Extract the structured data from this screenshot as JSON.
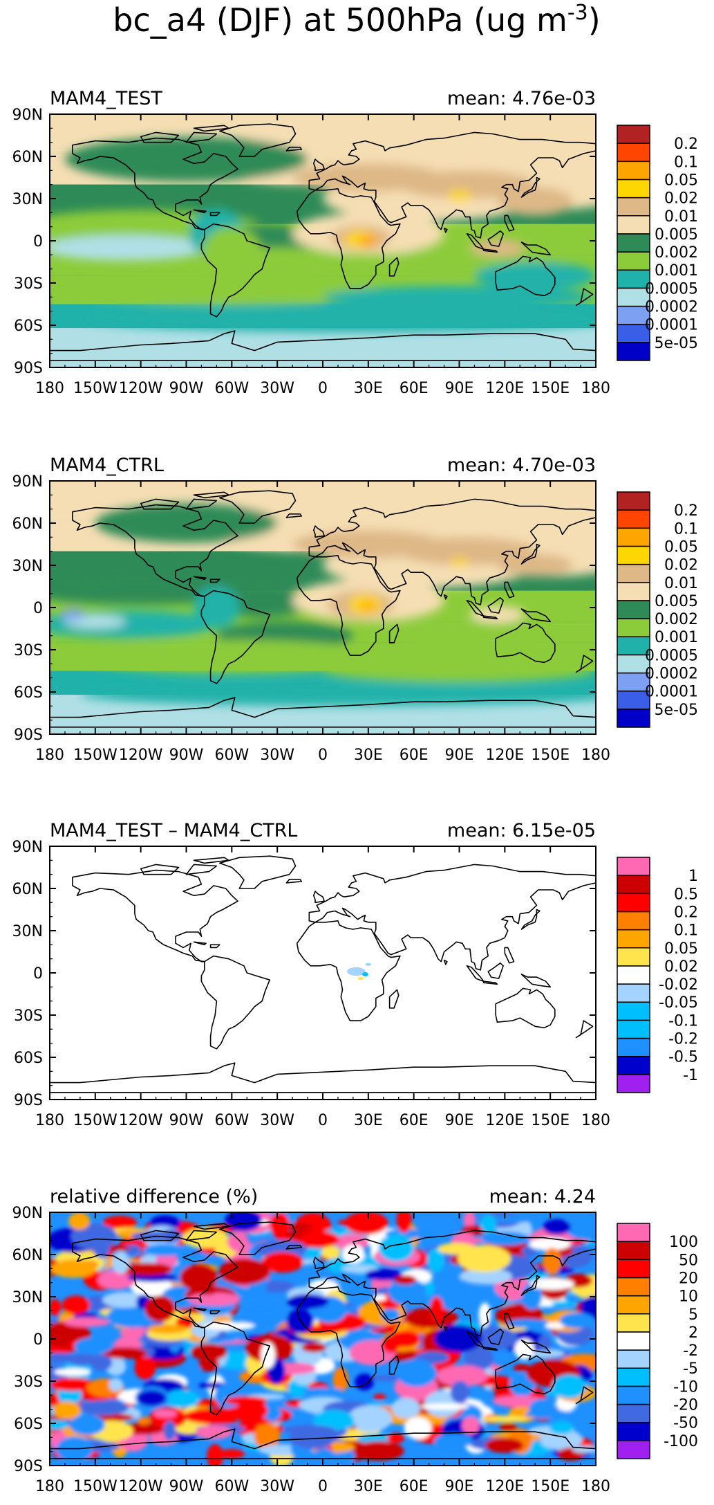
{
  "figure_title": "bc_a4 (DJF) at 500hPa (ug m",
  "figure_title_sup": "-3",
  "figure_title_end": ")",
  "colors": {
    "conc": [
      "#0000c8",
      "#3a5ee8",
      "#7ea0f2",
      "#b0e0e6",
      "#20b2aa",
      "#8ccc3a",
      "#2e8b57",
      "#f5deb3",
      "#deb887",
      "#ffd700",
      "#ffa500",
      "#ff4500",
      "#b22222"
    ],
    "diff": [
      "#a020f0",
      "#0000cd",
      "#1e90ff",
      "#00bfff",
      "#00bfff",
      "#a4d3ff",
      "#ffffff",
      "#ffe44d",
      "#ffa500",
      "#ff7f00",
      "#ff0000",
      "#cd0000",
      "#ff69b4"
    ],
    "rel": [
      "#a020f0",
      "#0000cd",
      "#4169e1",
      "#1e90ff",
      "#00bfff",
      "#a4d3ff",
      "#ffffff",
      "#ffe44d",
      "#ffa500",
      "#ff7f00",
      "#ff0000",
      "#cd0000",
      "#ff69b4"
    ],
    "coast": "#000000",
    "land_fill": "#ffffff"
  },
  "chart_data": [
    {
      "type": "heatmap",
      "title": "MAM4_TEST",
      "stat": "mean: 4.76e-03",
      "palette": "conc",
      "levels": [
        "5e-05",
        "0.0001",
        "0.0002",
        "0.0005",
        "0.001",
        "0.002",
        "0.005",
        "0.01",
        "0.02",
        "0.05",
        "0.1",
        "0.2"
      ],
      "x_ticks": [
        "180",
        "150W",
        "120W",
        "90W",
        "60W",
        "30W",
        "0",
        "30E",
        "60E",
        "90E",
        "120E",
        "150E",
        "180"
      ],
      "y_ticks": [
        "90N",
        "60N",
        "30N",
        "0",
        "30S",
        "60S",
        "90S"
      ],
      "xlim": [
        -180,
        180
      ],
      "ylim": [
        -90,
        90
      ]
    },
    {
      "type": "heatmap",
      "title": "MAM4_CTRL",
      "stat": "mean: 4.70e-03",
      "palette": "conc",
      "levels": [
        "5e-05",
        "0.0001",
        "0.0002",
        "0.0005",
        "0.001",
        "0.002",
        "0.005",
        "0.01",
        "0.02",
        "0.05",
        "0.1",
        "0.2"
      ],
      "x_ticks": [
        "180",
        "150W",
        "120W",
        "90W",
        "60W",
        "30W",
        "0",
        "30E",
        "60E",
        "90E",
        "120E",
        "150E",
        "180"
      ],
      "y_ticks": [
        "90N",
        "60N",
        "30N",
        "0",
        "30S",
        "60S",
        "90S"
      ],
      "xlim": [
        -180,
        180
      ],
      "ylim": [
        -90,
        90
      ]
    },
    {
      "type": "heatmap",
      "title": "MAM4_TEST – MAM4_CTRL",
      "stat": "mean: 6.15e-05",
      "palette": "diff",
      "levels": [
        "-1",
        "-0.5",
        "-0.2",
        "-0.1",
        "-0.05",
        "-0.02",
        "0.02",
        "0.05",
        "0.1",
        "0.2",
        "0.5",
        "1"
      ],
      "x_ticks": [
        "180",
        "150W",
        "120W",
        "90W",
        "60W",
        "30W",
        "0",
        "30E",
        "60E",
        "90E",
        "120E",
        "150E",
        "180"
      ],
      "y_ticks": [
        "90N",
        "60N",
        "30N",
        "0",
        "30S",
        "60S",
        "90S"
      ],
      "xlim": [
        -180,
        180
      ],
      "ylim": [
        -90,
        90
      ]
    },
    {
      "type": "heatmap",
      "title": "relative difference (%)",
      "stat": "mean:   4.24",
      "palette": "rel",
      "levels": [
        "-100",
        "-50",
        "-20",
        "-10",
        "-5",
        "-2",
        "2",
        "5",
        "10",
        "20",
        "50",
        "100"
      ],
      "x_ticks": [
        "180",
        "150W",
        "120W",
        "90W",
        "60W",
        "30W",
        "0",
        "30E",
        "60E",
        "90E",
        "120E",
        "150E",
        "180"
      ],
      "y_ticks": [
        "90N",
        "60N",
        "30N",
        "0",
        "30S",
        "60S",
        "90S"
      ],
      "xlim": [
        -180,
        180
      ],
      "ylim": [
        -90,
        90
      ]
    }
  ]
}
